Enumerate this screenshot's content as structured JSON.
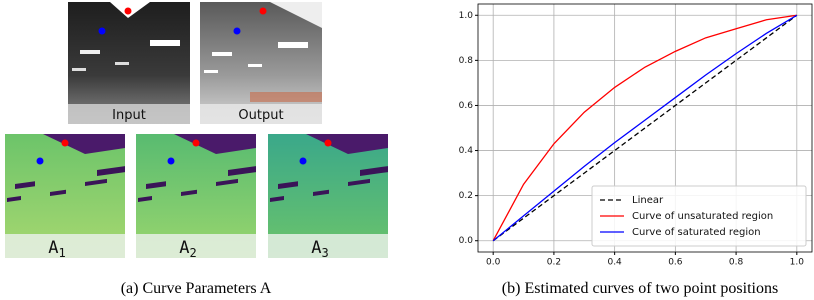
{
  "panel_a": {
    "caption": "(a) Curve Parameters A",
    "images": [
      {
        "label": "Input"
      },
      {
        "label": "Output"
      }
    ],
    "maps": [
      {
        "label": "A",
        "subscript": "1"
      },
      {
        "label": "A",
        "subscript": "2"
      },
      {
        "label": "A",
        "subscript": "3"
      }
    ]
  },
  "chart_data": {
    "type": "line",
    "caption": "(b) Estimated curves of two point positions",
    "x": [
      0,
      0.1,
      0.2,
      0.3,
      0.4,
      0.5,
      0.6,
      0.7,
      0.8,
      0.9,
      1
    ],
    "series": [
      {
        "name": "Linear",
        "color": "#000000",
        "dash": true,
        "values": [
          0,
          0.1,
          0.2,
          0.3,
          0.4,
          0.5,
          0.6,
          0.7,
          0.8,
          0.9,
          1
        ]
      },
      {
        "name": "Curve of unsaturated region",
        "color": "#ff0000",
        "dash": false,
        "values": [
          0,
          0.25,
          0.43,
          0.57,
          0.68,
          0.77,
          0.84,
          0.9,
          0.94,
          0.98,
          1
        ]
      },
      {
        "name": "Curve of saturated region",
        "color": "#0000ff",
        "dash": false,
        "values": [
          0,
          0.11,
          0.22,
          0.33,
          0.435,
          0.535,
          0.635,
          0.735,
          0.83,
          0.92,
          1
        ]
      }
    ],
    "xlim": [
      -0.05,
      1.05
    ],
    "ylim": [
      -0.05,
      1.05
    ],
    "xticks": [
      {
        "value": 0,
        "label": "0.0"
      },
      {
        "value": 0.2,
        "label": "0.2"
      },
      {
        "value": 0.4,
        "label": "0.4"
      },
      {
        "value": 0.6,
        "label": "0.6"
      },
      {
        "value": 0.8,
        "label": "0.8"
      },
      {
        "value": 1,
        "label": "1.0"
      }
    ],
    "yticks": [
      {
        "value": 0,
        "label": "0.0"
      },
      {
        "value": 0.2,
        "label": "0.2"
      },
      {
        "value": 0.4,
        "label": "0.4"
      },
      {
        "value": 0.6,
        "label": "0.6"
      },
      {
        "value": 0.8,
        "label": "0.8"
      },
      {
        "value": 1,
        "label": "1.0"
      }
    ],
    "grid": true,
    "legend": "lower right"
  }
}
